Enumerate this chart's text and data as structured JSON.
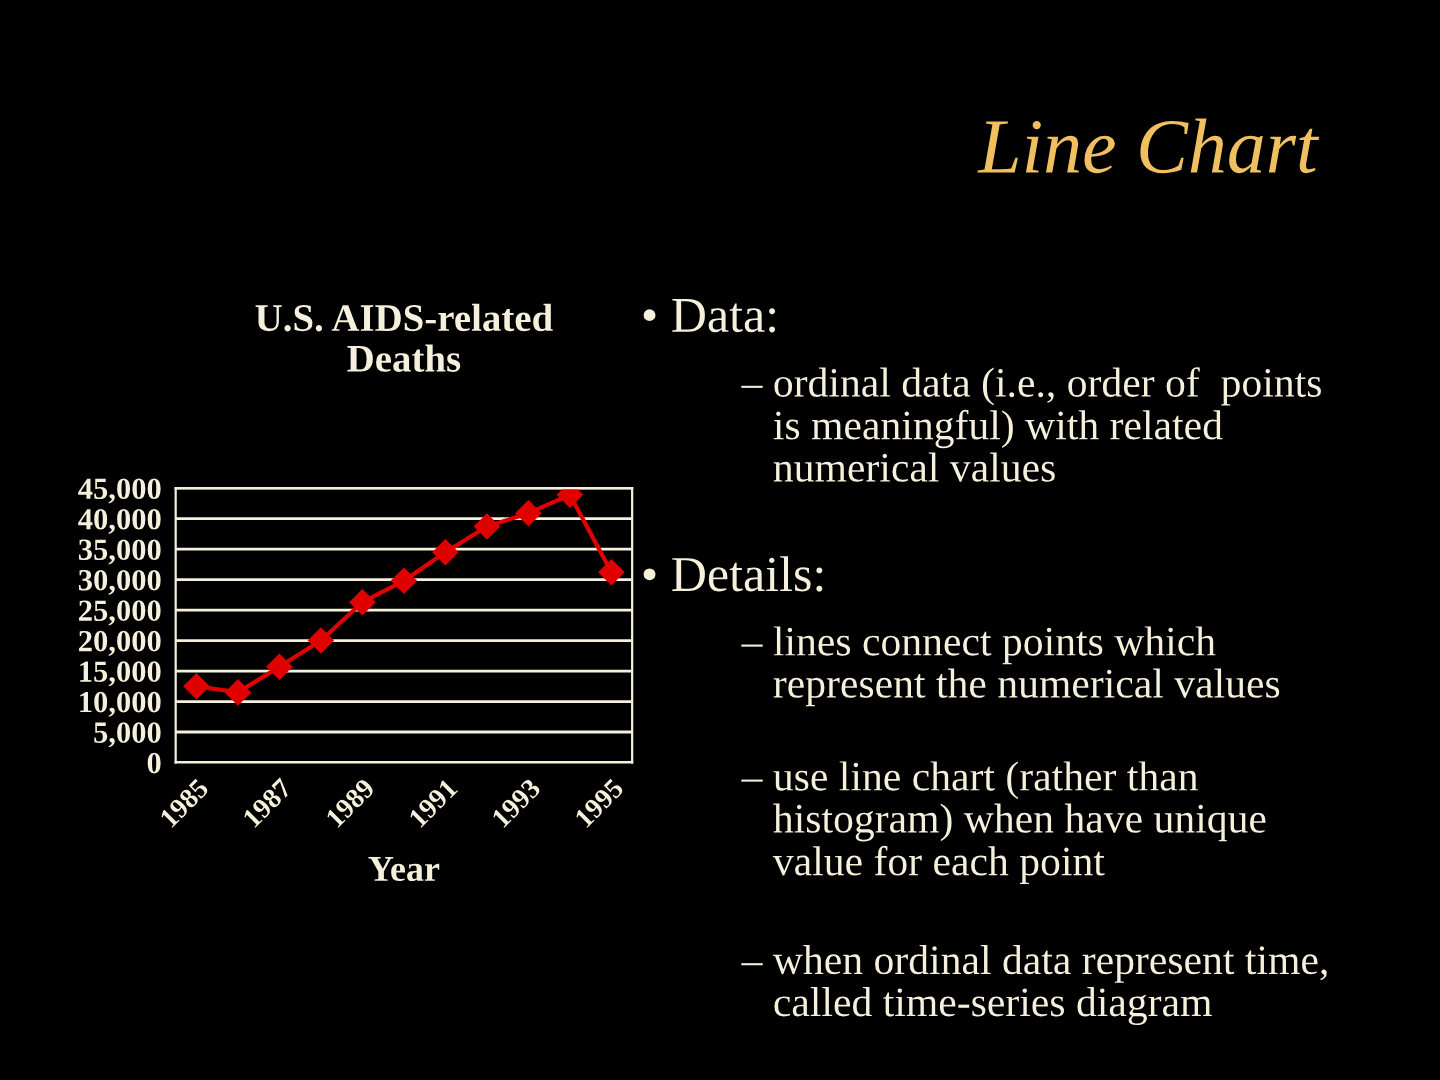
{
  "chart_data": {
    "type": "line",
    "title": "U.S. AIDS-related\nDeaths",
    "xlabel": "Year",
    "categories": [
      "1985",
      null,
      "1987",
      null,
      "1989",
      null,
      "1991",
      null,
      "1993",
      null,
      "1995"
    ],
    "series": [
      {
        "color": "#e00000",
        "values": [
          12500,
          11500,
          15700,
          20000,
          26300,
          29800,
          34500,
          38700,
          40900,
          43900,
          31200
        ]
      }
    ],
    "ylim": [
      0,
      45000
    ],
    "yticks": [
      {
        "value": 0,
        "label": "0"
      },
      {
        "value": 5000,
        "label": "5,000"
      },
      {
        "value": 10000,
        "label": "10,000"
      },
      {
        "value": 15000,
        "label": "15,000"
      },
      {
        "value": 20000,
        "label": "20,000"
      },
      {
        "value": 25000,
        "label": "25,000"
      },
      {
        "value": 30000,
        "label": "30,000"
      },
      {
        "value": 35000,
        "label": "35,000"
      },
      {
        "value": 40000,
        "label": "40,000"
      },
      {
        "value": 45000,
        "label": "45,000"
      }
    ],
    "grid": "y",
    "marker": "diamond",
    "line_style": "solid",
    "legend": false,
    "annotations": [
      "Line Chart",
      "• Data:",
      "– ordinal data (i.e., order of  points\n   is meaningful) with related\n   numerical values",
      "• Details:",
      "– lines connect points which\n   represent the numerical values",
      "– use line chart (rather than\n   histogram) when have unique\n   value for each point",
      "– when ordinal data represent time,\n   called time-series diagram"
    ]
  }
}
